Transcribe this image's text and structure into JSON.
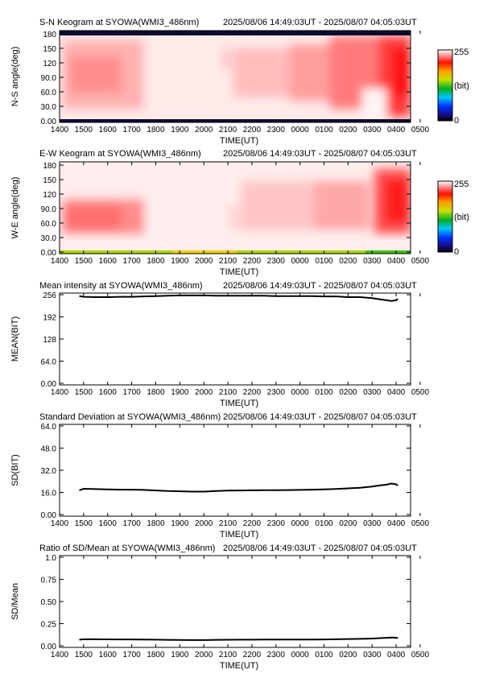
{
  "keograms": [
    {
      "title": "S-N Keogram at SYOWA(WMI3_486nm)",
      "timerange": "2025/08/06 14:49:03UT - 2025/08/07 04:05:03UT",
      "ylabel": "N-S angle(deg)",
      "xlabel": "TIME(UT)",
      "yticks": [
        "0.00",
        "30.0",
        "60.0",
        "90.0",
        "120",
        "150",
        "180"
      ],
      "colorbar": {
        "max": "255",
        "unit": "(bit)",
        "min": "0"
      }
    },
    {
      "title": "E-W Keogram at SYOWA(WMI3_486nm)",
      "timerange": "2025/08/06 14:49:03UT - 2025/08/07 04:05:03UT",
      "ylabel": "W-E angle(deg)",
      "xlabel": "TIME(UT)",
      "yticks": [
        "0.00",
        "30.0",
        "60.0",
        "90.0",
        "120",
        "150",
        "180"
      ],
      "colorbar": {
        "max": "255",
        "unit": "(bit)",
        "min": "0"
      }
    }
  ],
  "xticks": [
    "1400",
    "1500",
    "1600",
    "1700",
    "1800",
    "1900",
    "2000",
    "2100",
    "2200",
    "2300",
    "0000",
    "0100",
    "0200",
    "0300",
    "0400",
    "0500"
  ],
  "chart_data": [
    {
      "type": "line",
      "title": "Mean intensity at SYOWA(WMI3_486nm)",
      "timerange": "2025/08/06 14:49:03UT - 2025/08/07 04:05:03UT",
      "xlabel": "TIME(UT)",
      "ylabel": "MEAN(BIT)",
      "yticks": [
        "0.00",
        "64.0",
        "128",
        "192",
        "256"
      ],
      "ylim": [
        0,
        256
      ],
      "xlim": [
        14,
        29
      ],
      "x": [
        14.82,
        15.0,
        15.5,
        16.0,
        16.5,
        17.0,
        17.5,
        18.0,
        18.5,
        19.0,
        19.5,
        20.0,
        20.5,
        21.0,
        21.5,
        22.0,
        22.5,
        23.0,
        23.5,
        24.0,
        24.5,
        25.0,
        25.5,
        26.0,
        26.5,
        27.0,
        27.3,
        27.6,
        27.8,
        28.0,
        28.07
      ],
      "y": [
        252,
        250,
        249,
        249,
        250,
        250,
        251,
        252,
        253,
        254,
        254,
        254,
        253,
        253,
        253,
        253,
        253,
        252,
        252,
        252,
        252,
        251,
        251,
        249,
        249,
        246,
        243,
        240,
        238,
        240,
        244
      ]
    },
    {
      "type": "line",
      "title": "Standard Deviation at SYOWA(WMI3_486nm)",
      "timerange": "2025/08/06 14:49:03UT - 2025/08/07 04:05:03UT",
      "xlabel": "TIME(UT)",
      "ylabel": "SD(BIT)",
      "yticks": [
        "0.00",
        "16.0",
        "32.0",
        "48.0",
        "64.0"
      ],
      "ylim": [
        0,
        64
      ],
      "xlim": [
        14,
        29
      ],
      "x": [
        14.82,
        15.0,
        15.5,
        16.0,
        16.5,
        17.0,
        17.5,
        18.0,
        18.5,
        19.0,
        19.5,
        20.0,
        20.5,
        21.0,
        21.5,
        22.0,
        22.5,
        23.0,
        23.5,
        24.0,
        24.5,
        25.0,
        25.5,
        26.0,
        26.5,
        27.0,
        27.3,
        27.6,
        27.8,
        28.0,
        28.07
      ],
      "y": [
        17.5,
        18.6,
        18.4,
        18.2,
        18.0,
        18.0,
        17.8,
        17.4,
        17.0,
        16.8,
        16.6,
        16.6,
        17.0,
        17.3,
        17.4,
        17.5,
        17.6,
        17.6,
        17.7,
        17.8,
        18.0,
        18.2,
        18.5,
        18.9,
        19.4,
        20.2,
        21.0,
        21.6,
        22.4,
        21.8,
        21.0
      ]
    },
    {
      "type": "line",
      "title": "Ratio of SD/Mean at SYOWA(WMI3_486nm)",
      "timerange": "2025/08/06 14:49:03UT - 2025/08/07 04:05:03UT",
      "xlabel": "TIME(UT)",
      "ylabel": "SD/Mean",
      "yticks": [
        "0.00",
        "0.25",
        "0.50",
        "0.75",
        "1.0"
      ],
      "ylim": [
        0,
        1.0
      ],
      "xlim": [
        14,
        29
      ],
      "x": [
        14.82,
        15.0,
        15.5,
        16.0,
        16.5,
        17.0,
        17.5,
        18.0,
        18.5,
        19.0,
        19.5,
        20.0,
        20.5,
        21.0,
        21.5,
        22.0,
        22.5,
        23.0,
        23.5,
        24.0,
        24.5,
        25.0,
        25.5,
        26.0,
        26.5,
        27.0,
        27.3,
        27.6,
        27.8,
        28.0,
        28.07
      ],
      "y": [
        0.069,
        0.074,
        0.074,
        0.073,
        0.072,
        0.072,
        0.071,
        0.069,
        0.067,
        0.066,
        0.065,
        0.065,
        0.067,
        0.068,
        0.069,
        0.069,
        0.07,
        0.07,
        0.07,
        0.071,
        0.071,
        0.072,
        0.074,
        0.076,
        0.078,
        0.082,
        0.086,
        0.09,
        0.094,
        0.091,
        0.086
      ]
    }
  ]
}
